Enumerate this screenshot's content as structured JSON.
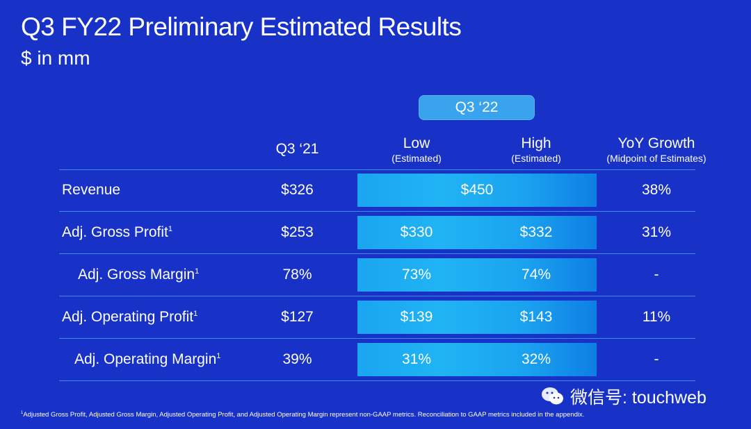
{
  "header": {
    "title": "Q3 FY22 Preliminary Estimated Results",
    "subtitle": "$ in mm"
  },
  "period_pill": "Q3 ‘22",
  "columns": {
    "prior": {
      "label": "Q3 ‘21"
    },
    "low": {
      "label": "Low",
      "sublabel": "(Estimated)"
    },
    "high": {
      "label": "High",
      "sublabel": "(Estimated)"
    },
    "yoy": {
      "label": "YoY Growth",
      "sublabel": "(Midpoint of Estimates)"
    }
  },
  "rows": [
    {
      "label": "Revenue",
      "footnote_mark": "",
      "prior": "$326",
      "range": "$450",
      "yoy": "38%"
    },
    {
      "label": "Adj. Gross Profit",
      "footnote_mark": "1",
      "prior": "$253",
      "low": "$330",
      "high": "$332",
      "yoy": "31%"
    },
    {
      "label": "Adj. Gross Margin",
      "footnote_mark": "1",
      "prior": "78%",
      "low": "73%",
      "high": "74%",
      "yoy": "-"
    },
    {
      "label": "Adj. Operating Profit",
      "footnote_mark": "1",
      "prior": "$127",
      "low": "$139",
      "high": "$143",
      "yoy": "11%"
    },
    {
      "label": "Adj. Operating Margin",
      "footnote_mark": "1",
      "prior": "39%",
      "low": "31%",
      "high": "32%",
      "yoy": "-"
    }
  ],
  "footnote": {
    "mark": "1",
    "text": "Adjusted Gross Profit, Adjusted Gross Margin, Adjusted Operating Profit, and Adjusted Operating Margin represent non-GAAP metrics. Reconciliation to GAAP metrics included in the appendix."
  },
  "watermark": {
    "text": "微信号: touchweb",
    "icon": "wechat-icon"
  },
  "colors": {
    "background": "#1832c8",
    "highlight_band": "#1aa5f0",
    "pill": "#3aa3ee",
    "divider": "#3f8df0"
  }
}
